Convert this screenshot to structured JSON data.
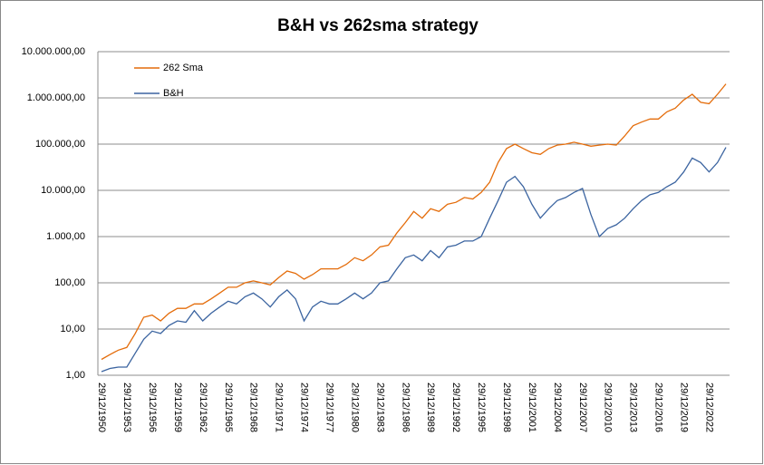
{
  "chart_data": {
    "type": "line",
    "title": "B&H vs 262sma strategy",
    "categories": [
      "29/12/1950",
      null,
      null,
      "29/12/1953",
      null,
      null,
      "29/12/1956",
      null,
      null,
      "29/12/1959",
      null,
      null,
      "29/12/1962",
      null,
      null,
      "29/12/1965",
      null,
      null,
      "29/12/1968",
      null,
      null,
      "29/12/1971",
      null,
      null,
      "29/12/1974",
      null,
      null,
      "29/12/1977",
      null,
      null,
      "29/12/1980",
      null,
      null,
      "29/12/1983",
      null,
      null,
      "29/12/1986",
      null,
      null,
      "29/12/1989",
      null,
      null,
      "29/12/1992",
      null,
      null,
      "29/12/1995",
      null,
      null,
      "29/12/1998",
      null,
      null,
      "29/12/2001",
      null,
      null,
      "29/12/2004",
      null,
      null,
      "29/12/2007",
      null,
      null,
      "29/12/2010",
      null,
      null,
      "29/12/2013",
      null,
      null,
      "29/12/2016",
      null,
      null,
      "29/12/2019",
      null,
      null,
      "29/12/2022",
      null,
      null
    ],
    "series": [
      {
        "name": "262 Sma",
        "color": "#e46c0a",
        "values": [
          2.2,
          2.8,
          3.5,
          4,
          8,
          18,
          20,
          15,
          22,
          28,
          28,
          35,
          35,
          45,
          60,
          80,
          80,
          100,
          110,
          100,
          90,
          130,
          180,
          160,
          120,
          150,
          200,
          200,
          200,
          250,
          350,
          300,
          400,
          600,
          650,
          1200,
          2000,
          3500,
          2500,
          4000,
          3500,
          5000,
          5500,
          7000,
          6500,
          9000,
          15000,
          40000,
          80000,
          100000,
          80000,
          65000,
          60000,
          80000,
          95000,
          100000,
          110000,
          100000,
          90000,
          95000,
          100000,
          95000,
          150000,
          250000,
          300000,
          350000,
          350000,
          500000,
          600000,
          900000,
          1200000,
          800000,
          750000,
          1200000,
          2000000
        ]
      },
      {
        "name": "B&H",
        "color": "#3b64a0",
        "values": [
          1.2,
          1.4,
          1.5,
          1.5,
          3,
          6,
          9,
          8,
          12,
          15,
          14,
          25,
          15,
          22,
          30,
          40,
          35,
          50,
          60,
          45,
          30,
          50,
          70,
          45,
          15,
          30,
          40,
          35,
          35,
          45,
          60,
          45,
          60,
          100,
          110,
          200,
          350,
          400,
          300,
          500,
          350,
          600,
          650,
          800,
          800,
          1000,
          2500,
          6000,
          15000,
          20000,
          12000,
          5000,
          2500,
          4000,
          6000,
          7000,
          9000,
          11000,
          3000,
          1000,
          1500,
          1800,
          2500,
          4000,
          6000,
          8000,
          9000,
          12000,
          15000,
          25000,
          50000,
          40000,
          25000,
          40000,
          85000
        ]
      }
    ],
    "ylim": [
      1,
      10000000
    ],
    "log_scale": true,
    "grid": true,
    "legend": "upper left",
    "yticks": [
      {
        "value": 1,
        "label": "1,00"
      },
      {
        "value": 10,
        "label": "10,00"
      },
      {
        "value": 100,
        "label": "100,00"
      },
      {
        "value": 1000,
        "label": "1.000,00"
      },
      {
        "value": 10000,
        "label": "10.000,00"
      },
      {
        "value": 100000,
        "label": "100.000,00"
      },
      {
        "value": 1000000,
        "label": "1.000.000,00"
      },
      {
        "value": 10000000,
        "label": "10.000.000,00"
      }
    ]
  }
}
